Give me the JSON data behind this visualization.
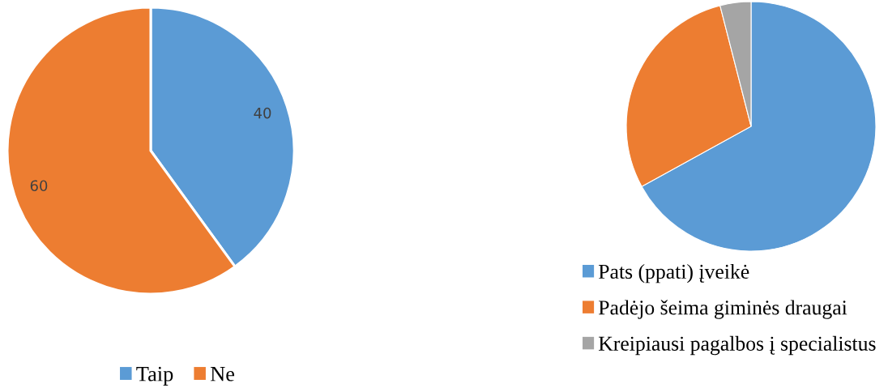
{
  "chart_data": [
    {
      "type": "pie",
      "categories": [
        "Taip",
        "Ne"
      ],
      "values": [
        40,
        60
      ],
      "colors": [
        "#5b9bd5",
        "#ed7d31"
      ],
      "data_labels": true,
      "legend": "bottom"
    },
    {
      "type": "pie",
      "categories": [
        "Pats (ppati) įveikė",
        "Padėjo šeima giminės draugai",
        "Kreipiausi pagalbos į specialistus"
      ],
      "values": [
        67,
        29,
        4
      ],
      "colors": [
        "#5b9bd5",
        "#ed7d31",
        "#a5a5a5"
      ],
      "legend": "bottom"
    }
  ]
}
